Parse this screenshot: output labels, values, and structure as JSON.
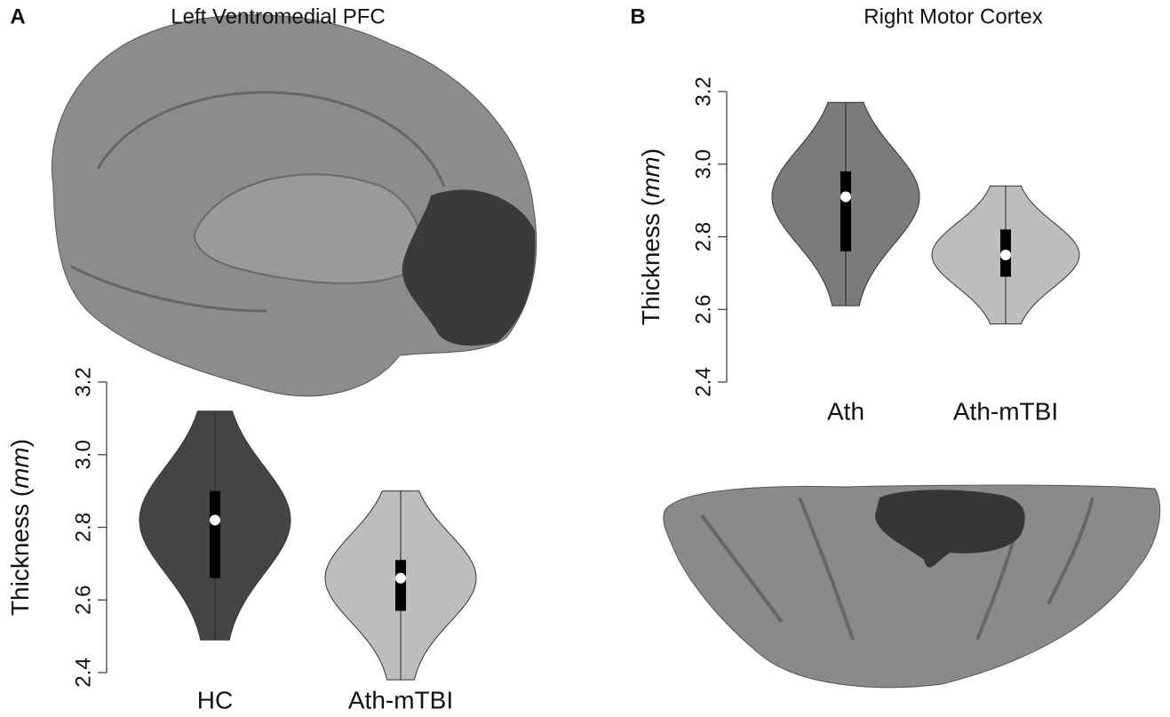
{
  "chart_data": [
    {
      "type": "violin",
      "panel": "A",
      "title": "Left Ventromedial PFC",
      "ylabel": [
        "Thickness (",
        "mm",
        ")"
      ],
      "ylim": [
        2.4,
        3.2
      ],
      "yticks": [
        2.4,
        2.6,
        2.8,
        {
          "value": 3,
          "label": "3.0"
        },
        3.2
      ],
      "violins": [
        {
          "name": "HC",
          "color": "#454545",
          "min": 2.49,
          "q1": 2.66,
          "median": 2.82,
          "q3": 2.9,
          "max": 3.12
        },
        {
          "name": "Ath-mTBI",
          "color": "#bdbdbd",
          "min": 2.38,
          "q1": 2.57,
          "median": 2.66,
          "q3": 2.71,
          "max": 2.9
        }
      ]
    },
    {
      "type": "violin",
      "panel": "B",
      "title": "Right Motor Cortex",
      "ylabel": [
        "Thickness (",
        "mm",
        ")"
      ],
      "ylim": [
        2.4,
        3.2
      ],
      "yticks": [
        2.4,
        2.6,
        2.8,
        {
          "value": 3,
          "label": "3.0"
        },
        3.2
      ],
      "violins": [
        {
          "name": "Ath",
          "color": "#7b7b7b",
          "min": 2.61,
          "q1": 2.76,
          "median": 2.91,
          "q3": 2.98,
          "max": 3.17
        },
        {
          "name": "Ath-mTBI",
          "color": "#bdbdbd",
          "min": 2.56,
          "q1": 2.69,
          "median": 2.75,
          "q3": 2.82,
          "max": 2.94
        }
      ]
    }
  ]
}
